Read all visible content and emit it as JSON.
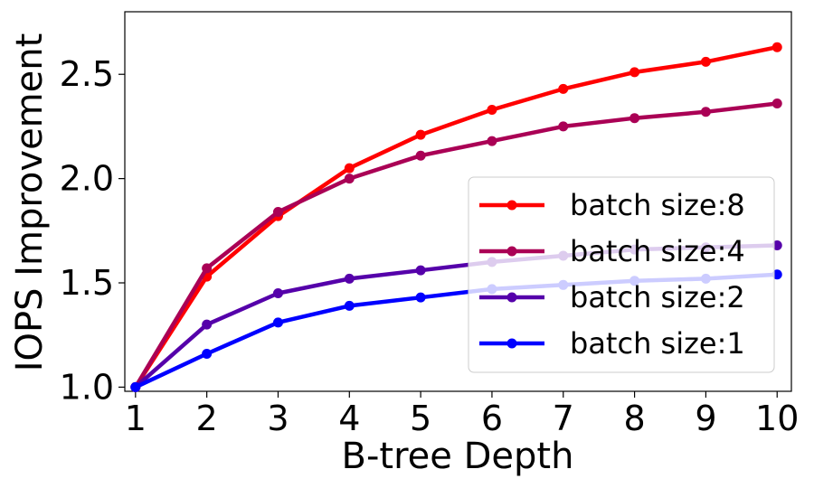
{
  "chart_data": {
    "type": "line",
    "title": "",
    "xlabel": "B-tree Depth",
    "ylabel": "IOPS Improvement",
    "x": [
      1,
      2,
      3,
      4,
      5,
      6,
      7,
      8,
      9,
      10
    ],
    "xlim": [
      0.85,
      10.2
    ],
    "ylim": [
      0.98,
      2.8
    ],
    "xticks": [
      "1",
      "2",
      "3",
      "4",
      "5",
      "6",
      "7",
      "8",
      "9",
      "10"
    ],
    "yticks": [
      1.0,
      1.5,
      2.0,
      2.5
    ],
    "ytick_labels": [
      "1.0",
      "1.5",
      "2.0",
      "2.5"
    ],
    "grid": false,
    "legend_position": "lower-right",
    "series": [
      {
        "name": "batch size:8",
        "color": "#ff0000",
        "values": [
          1.0,
          1.53,
          1.82,
          2.05,
          2.21,
          2.33,
          2.43,
          2.51,
          2.56,
          2.63
        ]
      },
      {
        "name": "batch size:4",
        "color": "#aa0055",
        "values": [
          1.0,
          1.57,
          1.84,
          2.0,
          2.11,
          2.18,
          2.25,
          2.29,
          2.32,
          2.36
        ]
      },
      {
        "name": "batch size:2",
        "color": "#5500aa",
        "values": [
          1.0,
          1.3,
          1.45,
          1.52,
          1.56,
          1.6,
          1.63,
          1.66,
          1.67,
          1.68
        ]
      },
      {
        "name": "batch size:1",
        "color": "#0000ff",
        "values": [
          1.0,
          1.16,
          1.31,
          1.39,
          1.43,
          1.47,
          1.49,
          1.51,
          1.52,
          1.54
        ]
      }
    ]
  }
}
